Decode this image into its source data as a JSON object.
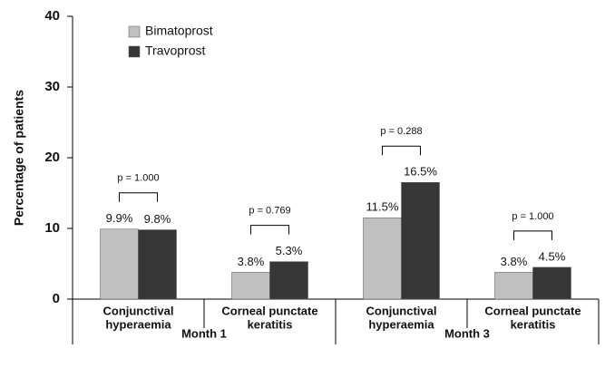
{
  "chart_data": {
    "type": "bar",
    "y_label": "Percentage of patients",
    "categories": [
      [
        "Conjunctival",
        "hyperaemia"
      ],
      [
        "Corneal punctate",
        "keratitis"
      ],
      [
        "Conjunctival",
        "hyperaemia"
      ],
      [
        "Corneal punctate",
        "keratitis"
      ]
    ],
    "group_labels": [
      "Month 1",
      "Month 3"
    ],
    "series": [
      {
        "name": "Bimatoprost",
        "color": "#c0c0c0",
        "values": [
          9.9,
          3.8,
          11.5,
          3.8
        ],
        "value_labels": [
          "9.9%",
          "3.8%",
          "11.5%",
          "3.8%"
        ]
      },
      {
        "name": "Travoprost",
        "color": "#363636",
        "values": [
          9.8,
          5.3,
          16.5,
          4.5
        ],
        "value_labels": [
          "9.8%",
          "5.3%",
          "16.5%",
          "4.5%"
        ]
      }
    ],
    "p_values": [
      "p = 1.000",
      "p = 0.769",
      "p = 0.288",
      "p = 1.000"
    ],
    "ylim": [
      0,
      40
    ],
    "yticks": [
      0,
      10,
      20,
      30,
      40
    ],
    "legend": "top-left"
  }
}
